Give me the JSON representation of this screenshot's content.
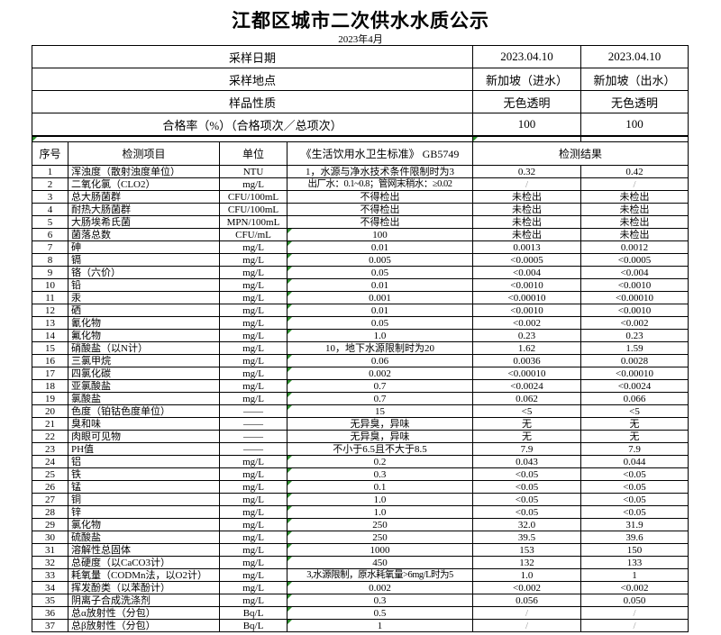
{
  "page_title": "江都区城市二次供水水质公示",
  "subtitle": "2023年4月",
  "info_table": {
    "rows": [
      {
        "label": "采样日期",
        "a": "2023.04.10",
        "b": "2023.04.10"
      },
      {
        "label": "采样地点",
        "a": "新加坡（进水）",
        "b": "新加坡（出水）"
      },
      {
        "label": "样品性质",
        "a": "无色透明",
        "b": "无色透明"
      },
      {
        "label": "合格率（%）（合格项次／总项次）",
        "a": "100",
        "b": "100"
      }
    ]
  },
  "main_table": {
    "header": {
      "no": "序号",
      "item": "检测项目",
      "unit": "单位",
      "standard": "《生活饮用水卫生标准》 GB5749",
      "result": "检测结果"
    },
    "rows": [
      {
        "n": "1",
        "item": "浑浊度（散射浊度单位）",
        "unit": "NTU",
        "std": "1，水源与净水技术条件限制时为3",
        "a": "0.32",
        "b": "0.42",
        "flag": false
      },
      {
        "n": "2",
        "item": "二氧化氯（CLO2）",
        "unit": "mg/L",
        "std": "出厂水：0.1~0.8；管网末稍水：≥0.02",
        "a": "/",
        "b": "/",
        "flag": false
      },
      {
        "n": "3",
        "item": "总大肠菌群",
        "unit": "CFU/100mL",
        "std": "不得检出",
        "a": "未检出",
        "b": "未检出",
        "flag": false
      },
      {
        "n": "4",
        "item": "耐热大肠菌群",
        "unit": "CFU/100mL",
        "std": "不得检出",
        "a": "未检出",
        "b": "未检出",
        "flag": false
      },
      {
        "n": "5",
        "item": "大肠埃希氏菌",
        "unit": "MPN/100mL",
        "std": "不得检出",
        "a": "未检出",
        "b": "未检出",
        "flag": false
      },
      {
        "n": "6",
        "item": "菌落总数",
        "unit": "CFU/mL",
        "std": "100",
        "a": "未检出",
        "b": "未检出",
        "flag": true
      },
      {
        "n": "7",
        "item": "砷",
        "unit": "mg/L",
        "std": "0.01",
        "a": "0.0013",
        "b": "0.0012",
        "flag": true
      },
      {
        "n": "8",
        "item": "镉",
        "unit": "mg/L",
        "std": "0.005",
        "a": "<0.0005",
        "b": "<0.0005",
        "flag": true
      },
      {
        "n": "9",
        "item": "铬（六价）",
        "unit": "mg/L",
        "std": "0.05",
        "a": "<0.004",
        "b": "<0.004",
        "flag": true
      },
      {
        "n": "10",
        "item": "铅",
        "unit": "mg/L",
        "std": "0.01",
        "a": "<0.0010",
        "b": "<0.0010",
        "flag": true
      },
      {
        "n": "11",
        "item": "汞",
        "unit": "mg/L",
        "std": "0.001",
        "a": "<0.00010",
        "b": "<0.00010",
        "flag": true
      },
      {
        "n": "12",
        "item": "硒",
        "unit": "mg/L",
        "std": "0.01",
        "a": "<0.0010",
        "b": "<0.0010",
        "flag": true
      },
      {
        "n": "13",
        "item": "氰化物",
        "unit": "mg/L",
        "std": "0.05",
        "a": "<0.002",
        "b": "<0.002",
        "flag": true
      },
      {
        "n": "14",
        "item": "氟化物",
        "unit": "mg/L",
        "std": "1.0",
        "a": "0.23",
        "b": "0.23",
        "flag": true
      },
      {
        "n": "15",
        "item": "硝酸盐（以N计）",
        "unit": "mg/L",
        "std": "10，地下水源限制时为20",
        "a": "1.62",
        "b": "1.59",
        "flag": false
      },
      {
        "n": "16",
        "item": "三氯甲烷",
        "unit": "mg/L",
        "std": "0.06",
        "a": "0.0036",
        "b": "0.0028",
        "flag": true
      },
      {
        "n": "17",
        "item": "四氯化碳",
        "unit": "mg/L",
        "std": "0.002",
        "a": "<0.00010",
        "b": "<0.00010",
        "flag": true
      },
      {
        "n": "18",
        "item": "亚氯酸盐",
        "unit": "mg/L",
        "std": "0.7",
        "a": "<0.0024",
        "b": "<0.0024",
        "flag": true
      },
      {
        "n": "19",
        "item": "氯酸盐",
        "unit": "mg/L",
        "std": "0.7",
        "a": "0.062",
        "b": "0.066",
        "flag": true
      },
      {
        "n": "20",
        "item": "色度（铂钴色度单位）",
        "unit": "——",
        "std": "15",
        "a": "<5",
        "b": "<5",
        "flag": true
      },
      {
        "n": "21",
        "item": "臭和味",
        "unit": "——",
        "std": "无异臭，异味",
        "a": "无",
        "b": "无",
        "flag": false
      },
      {
        "n": "22",
        "item": "肉眼可见物",
        "unit": "——",
        "std": "无异臭，异味",
        "a": "无",
        "b": "无",
        "flag": false
      },
      {
        "n": "23",
        "item": "PH值",
        "unit": "——",
        "std": "不小于6.5且不大于8.5",
        "a": "7.9",
        "b": "7.9",
        "flag": false
      },
      {
        "n": "24",
        "item": "铝",
        "unit": "mg/L",
        "std": "0.2",
        "a": "0.043",
        "b": "0.044",
        "flag": true
      },
      {
        "n": "25",
        "item": "铁",
        "unit": "mg/L",
        "std": "0.3",
        "a": "<0.05",
        "b": "<0.05",
        "flag": true
      },
      {
        "n": "26",
        "item": "锰",
        "unit": "mg/L",
        "std": "0.1",
        "a": "<0.05",
        "b": "<0.05",
        "flag": true
      },
      {
        "n": "27",
        "item": "铜",
        "unit": "mg/L",
        "std": "1.0",
        "a": "<0.05",
        "b": "<0.05",
        "flag": true
      },
      {
        "n": "28",
        "item": "锌",
        "unit": "mg/L",
        "std": "1.0",
        "a": "<0.05",
        "b": "<0.05",
        "flag": true
      },
      {
        "n": "29",
        "item": "氯化物",
        "unit": "mg/L",
        "std": "250",
        "a": "32.0",
        "b": "31.9",
        "flag": true
      },
      {
        "n": "30",
        "item": "硫酸盐",
        "unit": "mg/L",
        "std": "250",
        "a": "39.5",
        "b": "39.6",
        "flag": true
      },
      {
        "n": "31",
        "item": "溶解性总固体",
        "unit": "mg/L",
        "std": "1000",
        "a": "153",
        "b": "150",
        "flag": true
      },
      {
        "n": "32",
        "item": "总硬度（以CaCO3计）",
        "unit": "mg/L",
        "std": "450",
        "a": "132",
        "b": "133",
        "flag": true
      },
      {
        "n": "33",
        "item": "耗氧量（CODMn法，以O2计）",
        "unit": "mg/L",
        "std": "3,水源限制，原水耗氧量>6mg/L时为5",
        "a": "1.0",
        "b": "1",
        "flag": false
      },
      {
        "n": "34",
        "item": "挥发酚类（以苯酚计）",
        "unit": "mg/L",
        "std": "0.002",
        "a": "<0.002",
        "b": "<0.002",
        "flag": true
      },
      {
        "n": "35",
        "item": "阴离子合成洗涤剂",
        "unit": "mg/L",
        "std": "0.3",
        "a": "0.056",
        "b": "0.050",
        "flag": true
      },
      {
        "n": "36",
        "item": "总α放射性（分包）",
        "unit": "Bq/L",
        "std": "0.5",
        "a": "/",
        "b": "/",
        "flag": true
      },
      {
        "n": "37",
        "item": "总β放射性（分包）",
        "unit": "Bq/L",
        "std": "1",
        "a": "/",
        "b": "/",
        "flag": true
      }
    ]
  },
  "colors": {
    "flag_green": "#2f8f2f",
    "border_black": "#000000",
    "slash_gray": "#9a9a9a"
  }
}
